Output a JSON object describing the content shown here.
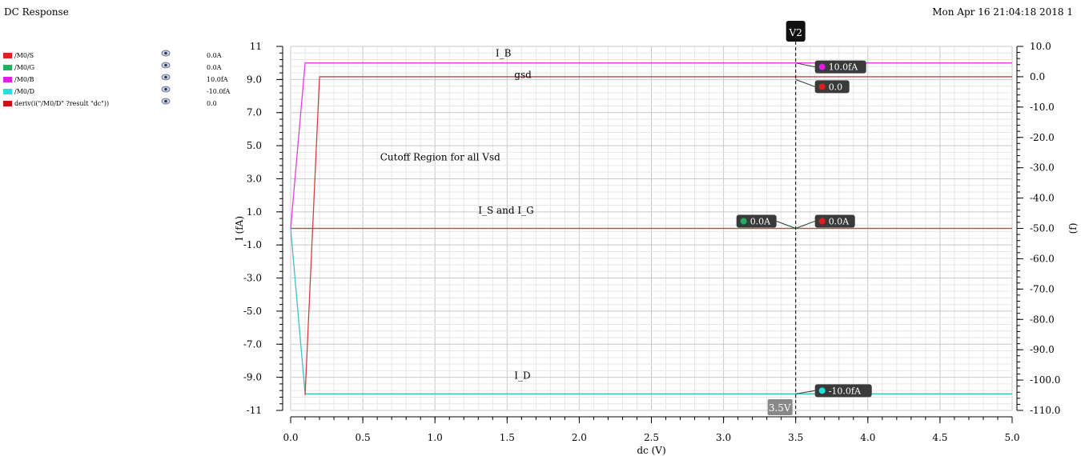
{
  "header": {
    "title": "DC Response",
    "timestamp": "Mon Apr 16 21:04:18 2018  1"
  },
  "legend": [
    {
      "name": "/M0/S",
      "value": "0.0A",
      "color": "#e02020",
      "eye_icon": "eye-icon"
    },
    {
      "name": "/M0/G",
      "value": "0.0A",
      "color": "#20b060",
      "eye_icon": "eye-icon"
    },
    {
      "name": "/M0/B",
      "value": "10.0fA",
      "color": "#e020e0",
      "eye_icon": "eye-icon"
    },
    {
      "name": "/M0/D",
      "value": "-10.0fA",
      "color": "#20e0e0",
      "eye_icon": "eye-icon"
    },
    {
      "name": "deriv(i(\"/M0/D\" ?result \"dc\"))",
      "value": "0.0",
      "color": "#d01010",
      "eye_icon": "eye-icon"
    }
  ],
  "chart_data": {
    "type": "line",
    "xlabel": "dc (V)",
    "ylabel_left": "I (fA)",
    "ylabel_right": "(f)",
    "xlim": [
      0.0,
      5.0
    ],
    "ylim_left": [
      -11,
      11
    ],
    "ylim_right": [
      -110,
      10
    ],
    "x_ticks": [
      "0.0",
      "0.5",
      "1.0",
      "1.5",
      "2.0",
      "2.5",
      "3.0",
      "3.5",
      "4.0",
      "4.5",
      "5.0"
    ],
    "y_ticks_left": [
      "11",
      "9.0",
      "7.0",
      "5.0",
      "3.0",
      "1.0",
      "-1.0",
      "-3.0",
      "-5.0",
      "-7.0",
      "-9.0",
      "-11"
    ],
    "y_ticks_right": [
      "10.0",
      "0.0",
      "-10.0",
      "-20.0",
      "-30.0",
      "-40.0",
      "-50.0",
      "-60.0",
      "-70.0",
      "-80.0",
      "-90.0",
      "-100.0",
      "-110.0"
    ],
    "grid": true,
    "series": [
      {
        "name": "/M0/S",
        "axis": "left",
        "color": "#d04040",
        "x": [
          0.0,
          5.0
        ],
        "y": [
          0.0,
          0.0
        ]
      },
      {
        "name": "/M0/G",
        "axis": "left",
        "color": "#4a8a4a",
        "x": [
          0.0,
          5.0
        ],
        "y": [
          0.0,
          0.0
        ]
      },
      {
        "name": "/M0/B",
        "axis": "left",
        "color": "#e040e0",
        "x": [
          0.0,
          0.1,
          5.0
        ],
        "y": [
          0.0,
          10.0,
          10.0
        ]
      },
      {
        "name": "/M0/D",
        "axis": "left",
        "color": "#40c0c0",
        "x": [
          0.0,
          0.1,
          5.0
        ],
        "y": [
          0.0,
          -10.0,
          -10.0
        ]
      },
      {
        "name": "deriv(i(\"/M0/D\" ?result \"dc\"))",
        "axis": "right",
        "color": "#d04040",
        "x": [
          0.1,
          0.2,
          5.0
        ],
        "y": [
          -105.0,
          0.0,
          0.0
        ]
      }
    ],
    "annotations": [
      {
        "text": "I_B",
        "x": 1.42,
        "y": 10.4
      },
      {
        "text": "gsd",
        "x": 1.55,
        "y": 9.1
      },
      {
        "text": "Cutoff Region for all Vsd",
        "x": 0.62,
        "y": 4.1
      },
      {
        "text": "I_S and I_G",
        "x": 1.3,
        "y": 0.9
      },
      {
        "text": "I_D",
        "x": 1.55,
        "y": -9.1
      }
    ],
    "cursor": {
      "label": "V2",
      "x": 3.5,
      "x_label": "3.5V",
      "markers": [
        {
          "text": "10.0fA",
          "color": "#e020e0",
          "y": 10.0,
          "side": "right",
          "axis": "left"
        },
        {
          "text": "0.0",
          "color": "#e02020",
          "y": 9.0,
          "side": "right",
          "axis": "left"
        },
        {
          "text": "0.0A",
          "color": "#20b060",
          "y": 0.0,
          "side": "left",
          "axis": "left"
        },
        {
          "text": "0.0A",
          "color": "#e02020",
          "y": 0.0,
          "side": "right",
          "axis": "left"
        },
        {
          "text": "-10.0fA",
          "color": "#20e0e0",
          "y": -10.0,
          "side": "right",
          "axis": "left"
        }
      ]
    }
  }
}
